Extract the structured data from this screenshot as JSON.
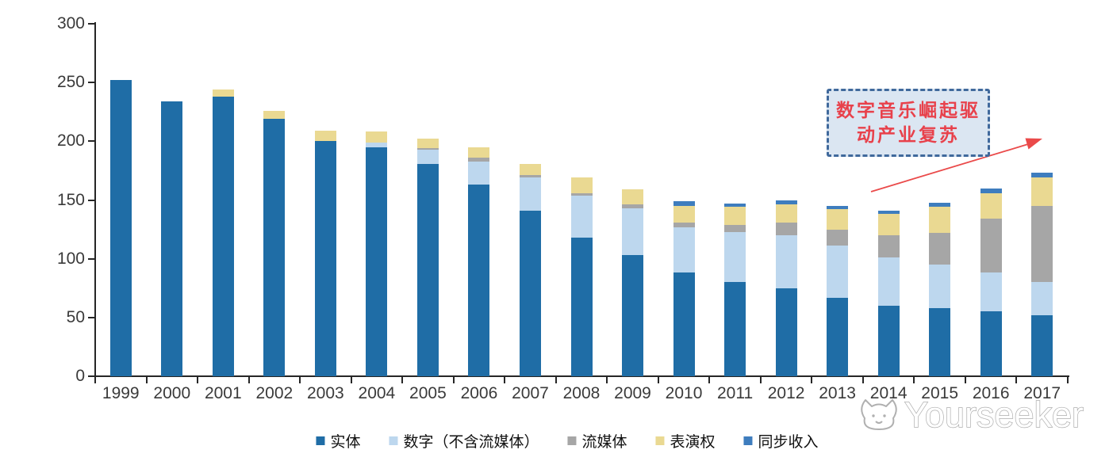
{
  "chart_data": {
    "type": "bar",
    "stacked": true,
    "title": "",
    "xlabel": "",
    "ylabel": "",
    "categories": [
      "1999",
      "2000",
      "2001",
      "2002",
      "2003",
      "2004",
      "2005",
      "2006",
      "2007",
      "2008",
      "2009",
      "2010",
      "2011",
      "2012",
      "2013",
      "2014",
      "2015",
      "2016",
      "2017"
    ],
    "series": [
      {
        "key": "physical",
        "name": "实体",
        "color": "#1F6DA6",
        "values": [
          252,
          234,
          238,
          219,
          200,
          195,
          181,
          163,
          141,
          118,
          103,
          88,
          80,
          75,
          67,
          60,
          58,
          55,
          52
        ]
      },
      {
        "key": "digital-excl-streaming",
        "name": "数字（不含流媒体）",
        "color": "#BDD7EE",
        "values": [
          0,
          0,
          0,
          0,
          0,
          4,
          12,
          20,
          28,
          36,
          40,
          39,
          43,
          45,
          44,
          41,
          37,
          33,
          28
        ]
      },
      {
        "key": "streaming",
        "name": "流媒体",
        "color": "#A6A6A6",
        "values": [
          0,
          0,
          0,
          0,
          0,
          0,
          1,
          3,
          2,
          2,
          3,
          4,
          6,
          11,
          14,
          19,
          27,
          46,
          65
        ]
      },
      {
        "key": "performance-rights",
        "name": "表演权",
        "color": "#EAD992",
        "values": [
          0,
          0,
          6,
          7,
          9,
          9,
          8,
          9,
          10,
          13,
          13,
          14,
          15,
          15,
          17,
          18,
          22,
          22,
          24
        ]
      },
      {
        "key": "sync-revenue",
        "name": "同步收入",
        "color": "#3E7DBE",
        "values": [
          0,
          0,
          0,
          0,
          0,
          0,
          0,
          0,
          0,
          0,
          0,
          4,
          3,
          4,
          3,
          3,
          4,
          4,
          4
        ]
      }
    ],
    "ylim": [
      0,
      300
    ],
    "yticks": [
      0,
      50,
      100,
      150,
      200,
      250,
      300
    ],
    "grid": false,
    "legend_position": "bottom"
  },
  "annotation": {
    "line1": "数字音乐崛起驱",
    "line2": "动产业复苏",
    "fill_color": "#DBE6F2",
    "border_color": "#40699C",
    "text_color": "#E8414B",
    "arrow_color": "#EA4A4A"
  },
  "watermark": {
    "text": "Yourseeker",
    "color": "#B0B0B0"
  }
}
